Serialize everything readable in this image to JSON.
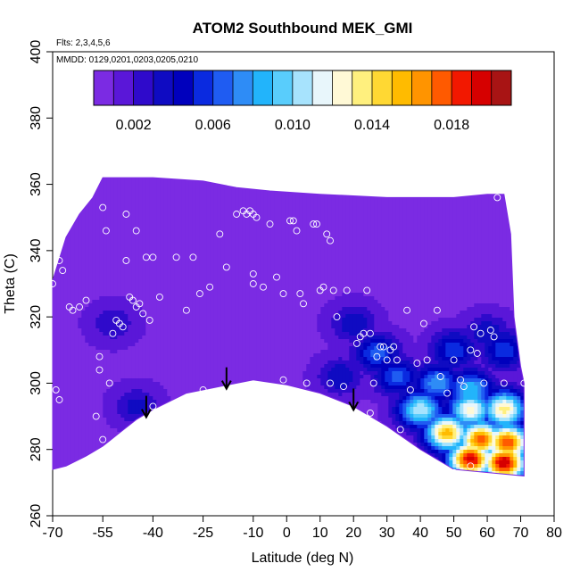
{
  "chart_data": {
    "type": "heatmap",
    "title": "ATOM2 Southbound MEK_GMI",
    "annotations": {
      "flights": "Flts: 2,3,4,5,6",
      "dates": "MMDD: 0129,0201,0203,0205,0210"
    },
    "xlabel": "Latitude (deg N)",
    "ylabel": "Theta (C)",
    "xlim": [
      -70,
      80
    ],
    "ylim": [
      260,
      400
    ],
    "x_ticks": [
      -70,
      -55,
      -40,
      -25,
      -10,
      0,
      10,
      20,
      30,
      40,
      50,
      60,
      70,
      80
    ],
    "x_tick_labels": [
      "-70",
      "-55",
      "-40",
      "-25",
      "-10",
      "0",
      "10",
      "20",
      "30",
      "40",
      "50",
      "60",
      "70",
      "80"
    ],
    "y_ticks": [
      260,
      280,
      300,
      320,
      340,
      360,
      380,
      400
    ],
    "y_tick_labels": [
      "260",
      "280",
      "300",
      "320",
      "340",
      "360",
      "380",
      "400"
    ],
    "colorbar": {
      "range": [
        0,
        0.021
      ],
      "tick_values": [
        0.002,
        0.006,
        0.01,
        0.014,
        0.018
      ],
      "tick_labels": [
        "0.002",
        "0.006",
        "0.010",
        "0.014",
        "0.018"
      ],
      "colors": [
        "#7b2be3",
        "#5a17d8",
        "#2f0acb",
        "#0f0bc2",
        "#0000bd",
        "#0a2ae0",
        "#1f5cf2",
        "#2e8cf6",
        "#22b4fb",
        "#59cdfc",
        "#a7e3fd",
        "#e8f6fb",
        "#fff9d6",
        "#fff07e",
        "#ffd833",
        "#ffbb00",
        "#ff9400",
        "#ff5a00",
        "#f21800",
        "#d60000",
        "#a81414"
      ]
    },
    "boundary_top": [
      [
        -70,
        331
      ],
      [
        -66,
        344
      ],
      [
        -62,
        351
      ],
      [
        -58,
        356
      ],
      [
        -55,
        362
      ],
      [
        -50,
        362
      ],
      [
        -40,
        362
      ],
      [
        -25,
        361
      ],
      [
        -15,
        359
      ],
      [
        -5,
        358
      ],
      [
        10,
        357
      ],
      [
        30,
        356
      ],
      [
        50,
        356
      ],
      [
        60,
        357
      ],
      [
        65,
        357
      ]
    ],
    "boundary_right": [
      [
        65,
        357
      ],
      [
        67,
        345
      ],
      [
        68,
        320
      ],
      [
        70,
        305
      ],
      [
        71,
        300
      ],
      [
        71,
        272
      ]
    ],
    "boundary_bottom": [
      [
        71,
        272
      ],
      [
        50,
        274
      ],
      [
        40,
        280
      ],
      [
        30,
        287
      ],
      [
        20,
        293
      ],
      [
        10,
        297
      ],
      [
        0,
        299.5
      ],
      [
        -10,
        301
      ],
      [
        -20,
        299
      ],
      [
        -30,
        297
      ],
      [
        -40,
        292
      ],
      [
        -45,
        289
      ],
      [
        -50,
        285
      ],
      [
        -55,
        281
      ],
      [
        -60,
        278
      ],
      [
        -66,
        275
      ],
      [
        -70,
        274
      ]
    ],
    "field_hotspots": [
      {
        "x": -45,
        "y": 293,
        "value": 0.0035
      },
      {
        "x": -52,
        "y": 318,
        "value": 0.003
      },
      {
        "x": 16,
        "y": 302,
        "value": 0.004
      },
      {
        "x": 20,
        "y": 318,
        "value": 0.004
      },
      {
        "x": 27,
        "y": 309,
        "value": 0.0065
      },
      {
        "x": 33,
        "y": 302,
        "value": 0.0065
      },
      {
        "x": 50,
        "y": 310,
        "value": 0.006
      },
      {
        "x": 60,
        "y": 315,
        "value": 0.004
      },
      {
        "x": 65,
        "y": 310,
        "value": 0.006
      },
      {
        "x": 45,
        "y": 300,
        "value": 0.008
      },
      {
        "x": 55,
        "y": 298,
        "value": 0.009
      },
      {
        "x": 40,
        "y": 292,
        "value": 0.011
      },
      {
        "x": 55,
        "y": 292,
        "value": 0.0125
      },
      {
        "x": 65,
        "y": 292,
        "value": 0.0135
      },
      {
        "x": 48,
        "y": 285,
        "value": 0.0155
      },
      {
        "x": 58,
        "y": 283,
        "value": 0.0175
      },
      {
        "x": 66,
        "y": 282,
        "value": 0.018
      },
      {
        "x": 55,
        "y": 277,
        "value": 0.0195
      },
      {
        "x": 65,
        "y": 276,
        "value": 0.02
      }
    ],
    "sample_points": [
      [
        -70,
        330
      ],
      [
        -69,
        298
      ],
      [
        -68,
        295
      ],
      [
        -68,
        337
      ],
      [
        -67,
        334
      ],
      [
        -65,
        323
      ],
      [
        -64,
        322
      ],
      [
        -62,
        323
      ],
      [
        -60,
        325
      ],
      [
        -57,
        290
      ],
      [
        -56,
        304
      ],
      [
        -56,
        308
      ],
      [
        -55,
        353
      ],
      [
        -54,
        346
      ],
      [
        -55,
        283
      ],
      [
        -53,
        300
      ],
      [
        -52,
        315
      ],
      [
        -51,
        319
      ],
      [
        -50,
        318
      ],
      [
        -49,
        317
      ],
      [
        -48,
        351
      ],
      [
        -48,
        337
      ],
      [
        -47,
        326
      ],
      [
        -46,
        325
      ],
      [
        -45,
        346
      ],
      [
        -45,
        323
      ],
      [
        -44,
        324
      ],
      [
        -43,
        321
      ],
      [
        -42,
        338
      ],
      [
        -41,
        319
      ],
      [
        -40,
        338
      ],
      [
        -40,
        293
      ],
      [
        -38,
        326
      ],
      [
        -37,
        292
      ],
      [
        -36,
        292
      ],
      [
        -33,
        338
      ],
      [
        -30,
        322
      ],
      [
        -28,
        338
      ],
      [
        -26,
        327
      ],
      [
        -25,
        298
      ],
      [
        -23,
        329
      ],
      [
        -20,
        345
      ],
      [
        -18,
        335
      ],
      [
        -15,
        351
      ],
      [
        -13,
        352
      ],
      [
        -12,
        351
      ],
      [
        -11,
        352
      ],
      [
        -10,
        351
      ],
      [
        -9,
        350
      ],
      [
        -10,
        333
      ],
      [
        -10,
        330
      ],
      [
        -7,
        329
      ],
      [
        -5,
        348
      ],
      [
        -3,
        332
      ],
      [
        -1,
        301
      ],
      [
        -1,
        327
      ],
      [
        1,
        349
      ],
      [
        2,
        349
      ],
      [
        3,
        346
      ],
      [
        4,
        327
      ],
      [
        5,
        324
      ],
      [
        6,
        300
      ],
      [
        8,
        348
      ],
      [
        9,
        348
      ],
      [
        10,
        328
      ],
      [
        11,
        329
      ],
      [
        12,
        345
      ],
      [
        13,
        343
      ],
      [
        13,
        300
      ],
      [
        14,
        328
      ],
      [
        15,
        320
      ],
      [
        17,
        299
      ],
      [
        18,
        328
      ],
      [
        21,
        312
      ],
      [
        22,
        314
      ],
      [
        23,
        315
      ],
      [
        24,
        328
      ],
      [
        25,
        315
      ],
      [
        25,
        291
      ],
      [
        26,
        300
      ],
      [
        27,
        308
      ],
      [
        28,
        311
      ],
      [
        29,
        311
      ],
      [
        30,
        307
      ],
      [
        31,
        310
      ],
      [
        32,
        311
      ],
      [
        33,
        307
      ],
      [
        34,
        286
      ],
      [
        36,
        322
      ],
      [
        37,
        298
      ],
      [
        39,
        306
      ],
      [
        41,
        318
      ],
      [
        42,
        307
      ],
      [
        45,
        322
      ],
      [
        46,
        302
      ],
      [
        48,
        297
      ],
      [
        50,
        307
      ],
      [
        52,
        301
      ],
      [
        53,
        299
      ],
      [
        55,
        310
      ],
      [
        56,
        317
      ],
      [
        57,
        309
      ],
      [
        58,
        315
      ],
      [
        59,
        300
      ],
      [
        61,
        316
      ],
      [
        62,
        314
      ],
      [
        63,
        356
      ],
      [
        65,
        300
      ],
      [
        71,
        300
      ],
      [
        50,
        273
      ],
      [
        55,
        275
      ]
    ],
    "arrow_latitudes": [
      -42,
      -18,
      20
    ]
  }
}
